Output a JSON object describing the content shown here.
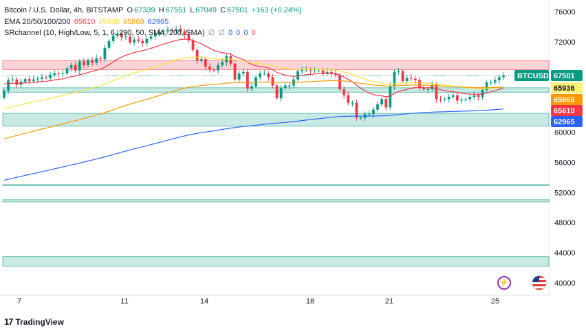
{
  "header": {
    "symbol": "Bitcoin / U.S. Dollar, 4h, BITSTAMP",
    "o_label": "O",
    "o_value": "67339",
    "h_label": "H",
    "h_value": "67551",
    "l_label": "L",
    "l_value": "67049",
    "c_label": "C",
    "c_value": "67501",
    "change": "+163 (+0.24%)",
    "ema_label": "EMA 20/50/100/200",
    "ema_values": [
      "65610",
      "65936",
      "65868",
      "62965"
    ],
    "ema_colors": [
      "#f23645",
      "#fff176",
      "#ff9800",
      "#2962ff"
    ],
    "sr_label": "SRchannel (10, High/Low, 5, 1, 6, 290, 50, SMA, 200, SMA)",
    "sr_values": [
      "∅",
      "∅",
      "0",
      "0",
      "0",
      "0"
    ]
  },
  "branding": {
    "logo_text": "TradingView"
  },
  "chart_data": {
    "type": "candlestick",
    "symbol": "BTCUSD",
    "timeframe": "4h",
    "x_ticks": [
      "7",
      "11",
      "14",
      "18",
      "21",
      "25"
    ],
    "y_ticks": [
      40000,
      44000,
      48000,
      52000,
      56000,
      60000,
      64000,
      68000,
      72000,
      76000
    ],
    "y_tick_labels": [
      "40000",
      "44000",
      "48000",
      "52000",
      "56000",
      "60000",
      "",
      "",
      "72000",
      "76000"
    ],
    "ylim": [
      39000,
      77500
    ],
    "last_price": 67501,
    "price_labels": [
      {
        "text": "BTCUSD",
        "value": 67501,
        "color": "#089981"
      },
      {
        "text": "67501",
        "value": 67501,
        "color": "#089981"
      },
      {
        "text": "65936",
        "value": 65936,
        "color": "#fff176"
      },
      {
        "text": "65868",
        "value": 65868,
        "color": "#ff9800"
      },
      {
        "text": "65610",
        "value": 65610,
        "color": "#f23645"
      },
      {
        "text": "62965",
        "value": 62965,
        "color": "#2962ff"
      }
    ],
    "sr_zones": [
      {
        "low": 68300,
        "high": 69500,
        "color": "#f23645"
      },
      {
        "low": 65300,
        "high": 65900,
        "color": "#089981"
      },
      {
        "low": 60800,
        "high": 62500,
        "color": "#089981"
      },
      {
        "low": 52900,
        "high": 53050,
        "color": "#089981"
      },
      {
        "low": 50750,
        "high": 51050,
        "color": "#089981"
      },
      {
        "low": 42200,
        "high": 43500,
        "color": "#089981"
      }
    ],
    "closes": [
      65500,
      66900,
      67000,
      66300,
      66700,
      67050,
      66800,
      67000,
      67100,
      67300,
      67200,
      67600,
      67800,
      67700,
      67800,
      68500,
      68900,
      68200,
      69400,
      68900,
      69600,
      69200,
      69800,
      69700,
      71200,
      72100,
      72800,
      73100,
      72600,
      72700,
      71900,
      72300,
      72100,
      71800,
      72400,
      72700,
      73000,
      73300,
      73400,
      73600,
      73500,
      73700,
      73400,
      72900,
      72200,
      70900,
      69500,
      69700,
      68700,
      68300,
      68200,
      68900,
      69300,
      70100,
      69100,
      67000,
      67800,
      68000,
      65800,
      66100,
      67300,
      67800,
      67800,
      67300,
      66200,
      64500,
      65900,
      66200,
      66200,
      67000,
      68100,
      68300,
      68300,
      68200,
      68200,
      68200,
      67800,
      68000,
      67800,
      67600,
      65700,
      64900,
      63900,
      63900,
      61900,
      61900,
      62400,
      62400,
      63000,
      63700,
      64400,
      63300,
      66100,
      68000,
      68100,
      66800,
      67200,
      67100,
      66900,
      65900,
      65700,
      65700,
      66300,
      64400,
      64300,
      64400,
      64700,
      64900,
      64200,
      64300,
      64400,
      64700,
      64900,
      64700,
      65600,
      66600,
      66600,
      66900,
      67300,
      67501
    ]
  }
}
